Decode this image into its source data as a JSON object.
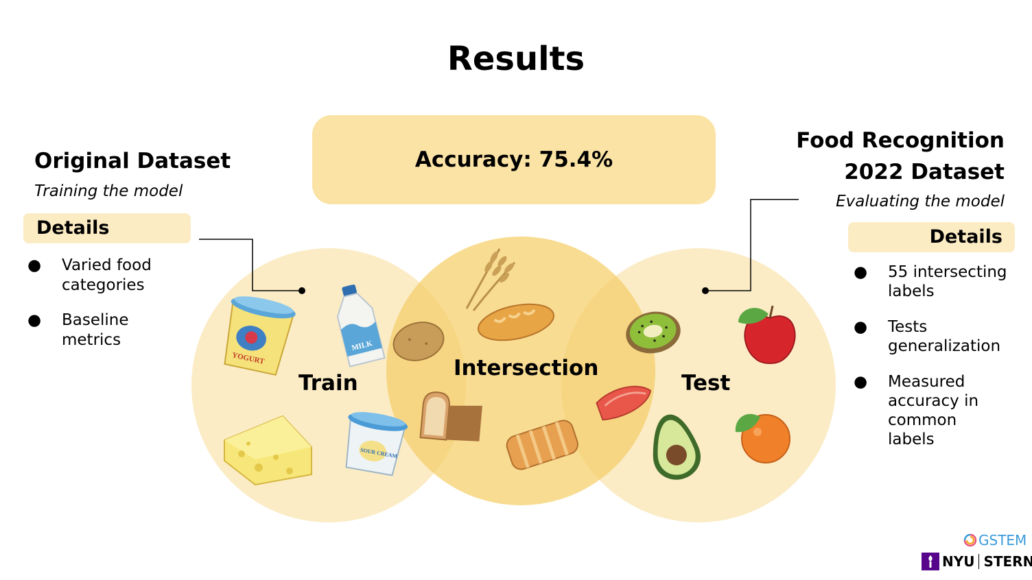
{
  "title": "Results",
  "accuracy": "Accuracy: 75.4%",
  "left": {
    "heading": "Original Dataset",
    "subtitle": "Training the model",
    "details_label": "Details",
    "bullets": [
      "Varied food categories",
      "Baseline metrics"
    ],
    "bullet_lines": [
      [
        "Varied food",
        "categories"
      ],
      [
        "Baseline",
        "metrics"
      ]
    ]
  },
  "right": {
    "heading_line1": "Food Recognition",
    "heading_line2": "2022 Dataset",
    "subtitle": "Evaluating the model",
    "details_label": "Details",
    "bullet_lines": [
      [
        "55 intersecting",
        "labels"
      ],
      [
        "Tests",
        "generalization"
      ],
      [
        "Measured",
        "accuracy in",
        "common",
        "labels"
      ]
    ]
  },
  "venn": {
    "train_label": "Train",
    "intersection_label": "Intersection",
    "test_label": "Test",
    "train_color": "#fbecc6",
    "intersection_color": "#f8dc92",
    "test_color": "#fbecc6"
  },
  "food_icons": {
    "train": [
      "yogurt-icon",
      "milk-bottle-icon",
      "cheese-icon",
      "sour-cream-icon"
    ],
    "intersection": [
      "wheat-icon",
      "bread-loaf-icon",
      "potato-icon",
      "bread-slice-icon",
      "pastry-icon"
    ],
    "test": [
      "kiwi-icon",
      "apple-icon",
      "salmon-icon",
      "avocado-icon",
      "orange-icon"
    ],
    "yogurt_text": "YOGURT",
    "milk_text": "MILK",
    "sour_cream_text": "SOUR CREAM"
  },
  "logos": {
    "gstem": "GSTEM",
    "nyu": "NYU",
    "stern": "STERN"
  },
  "colors": {
    "accent": "#fae3a5",
    "pill": "#fcecc4",
    "nyu_purple": "#57068c"
  }
}
